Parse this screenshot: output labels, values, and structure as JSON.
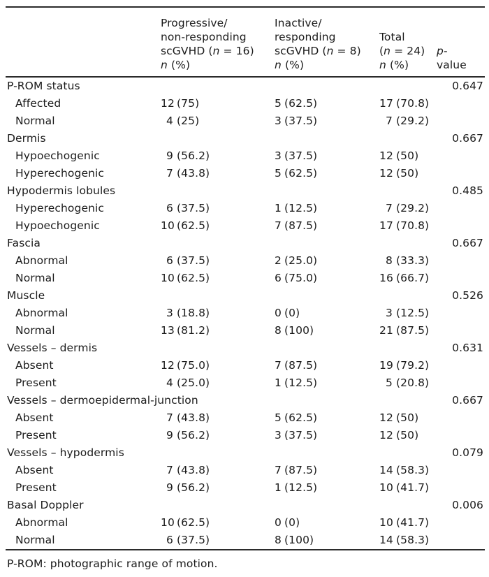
{
  "table": {
    "header": {
      "col_progressive": {
        "line1": "Progressive/",
        "line2": "non-responding",
        "line3_pre": "scGVHD (",
        "line3_var": "n",
        "line3_post": " = 16)",
        "line4_var": "n",
        "line4_post": " (%)"
      },
      "col_inactive": {
        "line1": "Inactive/",
        "line2": "responding",
        "line3_pre": "scGVHD (",
        "line3_var": "n",
        "line3_post": " = 8)",
        "line4_var": "n",
        "line4_post": " (%)"
      },
      "col_total": {
        "line1": "Total",
        "line2_pre": "(",
        "line2_var": "n",
        "line2_post": " = 24)",
        "line3_var": "n",
        "line3_post": " (%)"
      },
      "col_p": {
        "line1_var": "p",
        "line1_post": "-",
        "line2": "value"
      }
    },
    "sections": [
      {
        "label": "P-ROM status",
        "p": "0.647",
        "items": [
          {
            "label": "Affected",
            "prog_n": "12",
            "prog_pct": "(75)",
            "inact_n": "5",
            "inact_pct": "(62.5)",
            "total_n": "17",
            "total_pct": "(70.8)"
          },
          {
            "label": "Normal",
            "prog_n": "4",
            "prog_pct": "(25)",
            "inact_n": "3",
            "inact_pct": "(37.5)",
            "total_n": "7",
            "total_pct": "(29.2)"
          }
        ]
      },
      {
        "label": "Dermis",
        "p": "0.667",
        "items": [
          {
            "label": "Hypoechogenic",
            "prog_n": "9",
            "prog_pct": "(56.2)",
            "inact_n": "3",
            "inact_pct": "(37.5)",
            "total_n": "12",
            "total_pct": "(50)"
          },
          {
            "label": "Hyperechogenic",
            "prog_n": "7",
            "prog_pct": "(43.8)",
            "inact_n": "5",
            "inact_pct": "(62.5)",
            "total_n": "12",
            "total_pct": "(50)"
          }
        ]
      },
      {
        "label": "Hypodermis lobules",
        "p": "0.485",
        "items": [
          {
            "label": "Hyperechogenic",
            "prog_n": "6",
            "prog_pct": "(37.5)",
            "inact_n": "1",
            "inact_pct": "(12.5)",
            "total_n": "7",
            "total_pct": "(29.2)"
          },
          {
            "label": "Hypoechogenic",
            "prog_n": "10",
            "prog_pct": "(62.5)",
            "inact_n": "7",
            "inact_pct": "(87.5)",
            "total_n": "17",
            "total_pct": "(70.8)"
          }
        ]
      },
      {
        "label": "Fascia",
        "p": "0.667",
        "items": [
          {
            "label": "Abnormal",
            "prog_n": "6",
            "prog_pct": "(37.5)",
            "inact_n": "2",
            "inact_pct": "(25.0)",
            "total_n": "8",
            "total_pct": "(33.3)"
          },
          {
            "label": "Normal",
            "prog_n": "10",
            "prog_pct": "(62.5)",
            "inact_n": "6",
            "inact_pct": "(75.0)",
            "total_n": "16",
            "total_pct": "(66.7)"
          }
        ]
      },
      {
        "label": "Muscle",
        "p": "0.526",
        "items": [
          {
            "label": "Abnormal",
            "prog_n": "3",
            "prog_pct": "(18.8)",
            "inact_n": "0",
            "inact_pct": "(0)",
            "total_n": "3",
            "total_pct": "(12.5)"
          },
          {
            "label": "Normal",
            "prog_n": "13",
            "prog_pct": "(81.2)",
            "inact_n": "8",
            "inact_pct": "(100)",
            "total_n": "21",
            "total_pct": "(87.5)"
          }
        ]
      },
      {
        "label": "Vessels – dermis",
        "p": "0.631",
        "items": [
          {
            "label": "Absent",
            "prog_n": "12",
            "prog_pct": "(75.0)",
            "inact_n": "7",
            "inact_pct": "(87.5)",
            "total_n": "19",
            "total_pct": "(79.2)"
          },
          {
            "label": "Present",
            "prog_n": "4",
            "prog_pct": "(25.0)",
            "inact_n": "1",
            "inact_pct": "(12.5)",
            "total_n": "5",
            "total_pct": "(20.8)"
          }
        ]
      },
      {
        "label": "Vessels – dermoepidermal-junction",
        "p": "0.667",
        "items": [
          {
            "label": "Absent",
            "prog_n": "7",
            "prog_pct": "(43.8)",
            "inact_n": "5",
            "inact_pct": "(62.5)",
            "total_n": "12",
            "total_pct": "(50)"
          },
          {
            "label": "Present",
            "prog_n": "9",
            "prog_pct": "(56.2)",
            "inact_n": "3",
            "inact_pct": "(37.5)",
            "total_n": "12",
            "total_pct": "(50)"
          }
        ]
      },
      {
        "label": "Vessels – hypodermis",
        "p": "0.079",
        "items": [
          {
            "label": "Absent",
            "prog_n": "7",
            "prog_pct": "(43.8)",
            "inact_n": "7",
            "inact_pct": "(87.5)",
            "total_n": "14",
            "total_pct": "(58.3)"
          },
          {
            "label": "Present",
            "prog_n": "9",
            "prog_pct": "(56.2)",
            "inact_n": "1",
            "inact_pct": "(12.5)",
            "total_n": "10",
            "total_pct": "(41.7)"
          }
        ]
      },
      {
        "label": "Basal Doppler",
        "p": "0.006",
        "items": [
          {
            "label": "Abnormal",
            "prog_n": "10",
            "prog_pct": "(62.5)",
            "inact_n": "0",
            "inact_pct": "(0)",
            "total_n": "10",
            "total_pct": "(41.7)"
          },
          {
            "label": "Normal",
            "prog_n": "6",
            "prog_pct": "(37.5)",
            "inact_n": "8",
            "inact_pct": "(100)",
            "total_n": "14",
            "total_pct": "(58.3)"
          }
        ]
      }
    ],
    "footnote": "P-ROM: photographic range of motion."
  }
}
